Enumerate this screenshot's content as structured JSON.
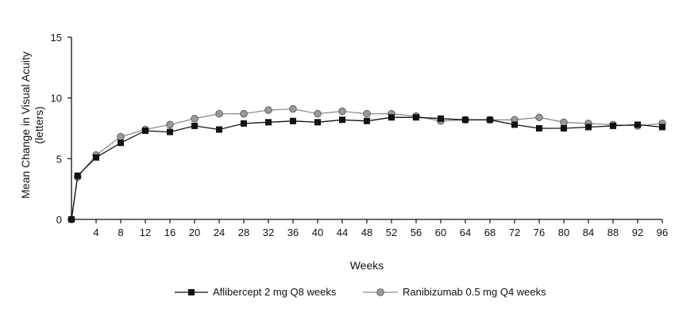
{
  "chart_data": {
    "type": "line",
    "xlabel": "Weeks",
    "ylabel_lines": [
      "Mean Change in Visual Acuity",
      "(letters)"
    ],
    "xlim": [
      0,
      96
    ],
    "ylim": [
      0,
      15
    ],
    "x_ticks": [
      4,
      8,
      12,
      16,
      20,
      24,
      28,
      32,
      36,
      40,
      44,
      48,
      52,
      56,
      60,
      64,
      68,
      72,
      76,
      80,
      84,
      88,
      92,
      96
    ],
    "y_ticks": [
      0,
      5,
      10,
      15
    ],
    "grid": false,
    "legend_position": "bottom-center",
    "x": [
      0,
      1,
      4,
      8,
      12,
      16,
      20,
      24,
      28,
      32,
      36,
      40,
      44,
      48,
      52,
      56,
      60,
      64,
      68,
      72,
      76,
      80,
      84,
      88,
      92,
      96
    ],
    "series": [
      {
        "name": "Aflibercept 2 mg Q8 weeks",
        "marker": "square",
        "marker_color": "#111111",
        "line_color": "#111111",
        "values": [
          0,
          3.6,
          5.1,
          6.3,
          7.3,
          7.2,
          7.7,
          7.4,
          7.9,
          8.0,
          8.1,
          8.0,
          8.2,
          8.1,
          8.4,
          8.4,
          8.3,
          8.2,
          8.2,
          7.8,
          7.5,
          7.5,
          7.6,
          7.7,
          7.8,
          7.6
        ]
      },
      {
        "name": "Ranibizumab 0.5 mg Q4 weeks",
        "marker": "circle",
        "marker_color": "#9a9a9a",
        "line_color": "#8c8c8c",
        "values": [
          0,
          3.5,
          5.3,
          6.8,
          7.4,
          7.8,
          8.3,
          8.7,
          8.7,
          9.0,
          9.1,
          8.7,
          8.9,
          8.7,
          8.7,
          8.5,
          8.1,
          8.2,
          8.2,
          8.2,
          8.4,
          8.0,
          7.9,
          7.8,
          7.7,
          7.9
        ]
      }
    ]
  }
}
